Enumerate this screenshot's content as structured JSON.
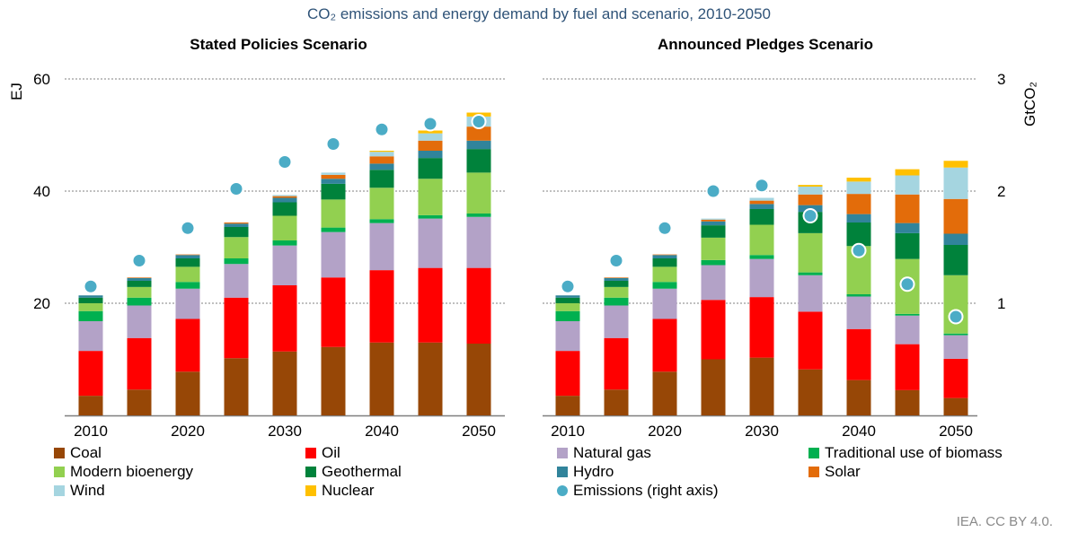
{
  "title": "CO₂ emissions and energy demand by fuel and scenario, 2010-2050",
  "credit": "IEA. CC BY 4.0.",
  "chart_data": {
    "type": "bar",
    "stacked": true,
    "left_axis": {
      "label": "EJ",
      "range": [
        0,
        60
      ],
      "ticks": [
        20,
        40,
        60
      ]
    },
    "right_axis": {
      "label": "GtCO₂",
      "range": [
        0,
        3
      ],
      "ticks": [
        1,
        2,
        3
      ]
    },
    "categories": [
      "2010",
      "2015",
      "2020",
      "2025",
      "2030",
      "2035",
      "2040",
      "2045",
      "2050"
    ],
    "x_tick_labels": [
      "2010",
      "2020",
      "2030",
      "2040",
      "2050"
    ],
    "series_meta": [
      {
        "key": "coal",
        "name": "Coal",
        "color": "#974706"
      },
      {
        "key": "oil",
        "name": "Oil",
        "color": "#ff0000"
      },
      {
        "key": "gas",
        "name": "Natural gas",
        "color": "#b3a2c7"
      },
      {
        "key": "trad",
        "name": "Traditional use of biomass",
        "color": "#00b050"
      },
      {
        "key": "bio",
        "name": "Modern bioenergy",
        "color": "#92d050"
      },
      {
        "key": "geo",
        "name": "Geothermal",
        "color": "#00823b"
      },
      {
        "key": "hydro",
        "name": "Hydro",
        "color": "#31849b"
      },
      {
        "key": "solar",
        "name": "Solar",
        "color": "#e36c0a"
      },
      {
        "key": "wind",
        "name": "Wind",
        "color": "#a5d5e0"
      },
      {
        "key": "nuclear",
        "name": "Nuclear",
        "color": "#ffc000"
      },
      {
        "key": "emissions",
        "name": "Emissions (right axis)",
        "color": "#4bacc6"
      }
    ],
    "panels": [
      {
        "title": "Stated Policies Scenario",
        "series": {
          "coal": [
            3.5,
            4.6,
            7.8,
            10.2,
            11.4,
            12.2,
            13.0,
            13.0,
            12.8
          ],
          "oil": [
            8.0,
            9.2,
            9.4,
            10.8,
            11.8,
            12.4,
            12.9,
            13.3,
            13.5
          ],
          "gas": [
            5.3,
            5.8,
            5.4,
            6.0,
            7.1,
            8.1,
            8.4,
            8.8,
            9.1
          ],
          "trad": [
            1.8,
            1.4,
            1.2,
            1.0,
            0.9,
            0.8,
            0.7,
            0.6,
            0.6
          ],
          "bio": [
            1.4,
            1.9,
            2.7,
            3.8,
            4.4,
            5.0,
            5.6,
            6.5,
            7.3
          ],
          "geo": [
            1.0,
            1.1,
            1.5,
            1.8,
            2.4,
            2.8,
            3.2,
            3.7,
            4.2
          ],
          "hydro": [
            0.4,
            0.5,
            0.6,
            0.6,
            0.8,
            0.9,
            1.1,
            1.3,
            1.5
          ],
          "solar": [
            0.0,
            0.1,
            0.1,
            0.2,
            0.3,
            0.7,
            1.3,
            1.8,
            2.5
          ],
          "wind": [
            0.0,
            0.0,
            0.0,
            0.0,
            0.2,
            0.4,
            0.8,
            1.3,
            1.8
          ],
          "nuclear": [
            0.0,
            0.0,
            0.0,
            0.0,
            0.0,
            0.0,
            0.2,
            0.5,
            0.7
          ]
        },
        "emissions": [
          1.15,
          1.38,
          1.67,
          2.02,
          2.26,
          2.42,
          2.55,
          2.6,
          2.62
        ]
      },
      {
        "title": "Announced Pledges Scenario",
        "series": {
          "coal": [
            3.5,
            4.6,
            7.8,
            10.0,
            10.3,
            8.2,
            6.3,
            4.5,
            3.1
          ],
          "oil": [
            8.0,
            9.2,
            9.4,
            10.6,
            10.8,
            10.3,
            9.1,
            8.2,
            7.0
          ],
          "gas": [
            5.3,
            5.8,
            5.4,
            6.2,
            6.8,
            6.5,
            5.8,
            5.1,
            4.2
          ],
          "trad": [
            1.8,
            1.4,
            1.2,
            0.9,
            0.7,
            0.5,
            0.4,
            0.3,
            0.3
          ],
          "bio": [
            1.4,
            1.9,
            2.7,
            4.0,
            5.4,
            7.0,
            8.6,
            9.8,
            10.4
          ],
          "geo": [
            1.0,
            1.1,
            1.5,
            2.2,
            2.8,
            3.8,
            4.2,
            4.6,
            5.4
          ],
          "hydro": [
            0.4,
            0.5,
            0.6,
            0.7,
            0.9,
            1.2,
            1.5,
            1.8,
            2.0
          ],
          "solar": [
            0.0,
            0.1,
            0.1,
            0.3,
            0.6,
            1.9,
            3.6,
            5.1,
            6.2
          ],
          "wind": [
            0.0,
            0.0,
            0.0,
            0.2,
            0.5,
            1.4,
            2.2,
            3.4,
            5.6
          ],
          "nuclear": [
            0.0,
            0.0,
            0.0,
            0.0,
            0.0,
            0.3,
            0.7,
            1.1,
            1.2
          ]
        },
        "emissions": [
          1.15,
          1.38,
          1.67,
          2.0,
          2.05,
          1.78,
          1.47,
          1.17,
          0.88
        ]
      }
    ],
    "grid": "horizontal dotted",
    "legend_position": "bottom"
  }
}
